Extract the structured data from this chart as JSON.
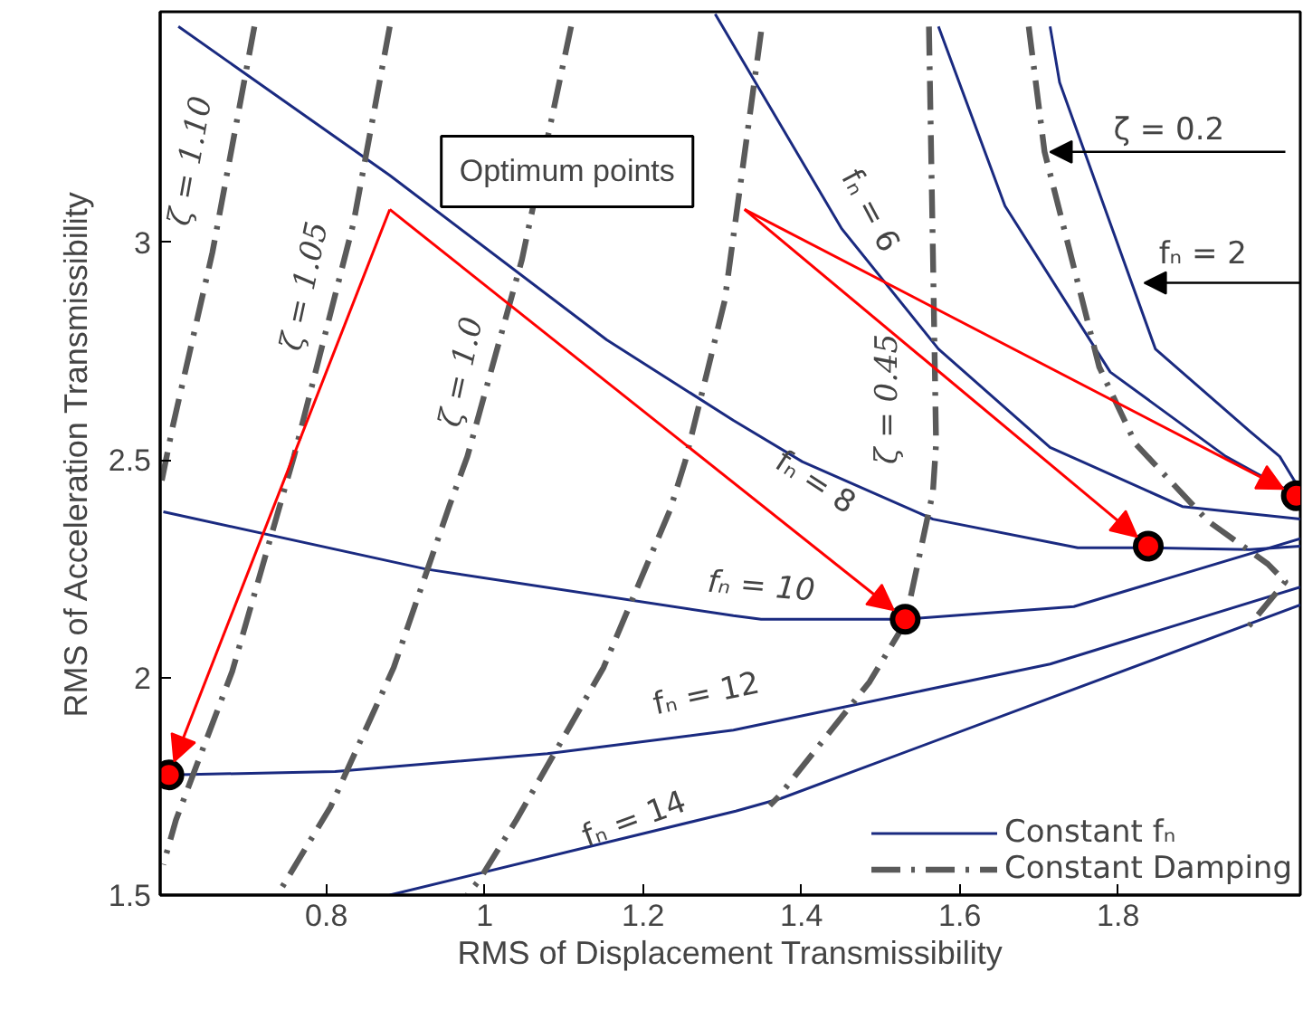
{
  "chart_data": {
    "type": "line",
    "xlabel": "RMS of Displacement Transmissibility",
    "ylabel": "RMS of Acceleration Transmissibility",
    "xlim": [
      0.59,
      2.03
    ],
    "ylim": [
      1.5,
      3.53
    ],
    "xticks": [
      0.8,
      1,
      1.2,
      1.4,
      1.6,
      1.8
    ],
    "yticks": [
      1.5,
      2,
      2.5,
      3
    ],
    "grid": false,
    "legend": "bottom right",
    "series": [
      {
        "name": "Constant fₙ",
        "color": "#1a2a80",
        "line_style": "solid",
        "x": [
          0.88,
          1.317,
          1.374,
          2.03
        ],
        "values": [
          1.5,
          1.693,
          1.722,
          2.167
        ]
      },
      {
        "color": "#1a2a80",
        "line_style": "solid",
        "x": [
          0.601,
          0.811,
          1.079,
          1.314,
          1.714,
          2.03
        ],
        "values": [
          1.776,
          1.784,
          1.825,
          1.879,
          2.031,
          2.208
        ]
      },
      {
        "color": "#1a2a80",
        "line_style": "solid",
        "x": [
          0.594,
          0.926,
          1.314,
          1.349,
          1.529,
          1.744,
          2.03
        ],
        "values": [
          2.381,
          2.249,
          2.142,
          2.134,
          2.134,
          2.163,
          2.319
        ]
      },
      {
        "color": "#1a2a80",
        "line_style": "solid",
        "x": [
          0.613,
          0.88,
          1.154,
          1.314,
          1.401,
          1.566,
          1.749,
          1.838,
          1.966,
          2.03
        ],
        "values": [
          3.496,
          3.154,
          2.776,
          2.591,
          2.496,
          2.364,
          2.298,
          2.298,
          2.294,
          2.302
        ]
      },
      {
        "color": "#1a2a80",
        "line_style": "solid",
        "x": [
          1.291,
          1.451,
          1.573,
          1.714,
          1.881,
          2.03
        ],
        "values": [
          3.525,
          3.031,
          2.755,
          2.529,
          2.393,
          2.364
        ]
      },
      {
        "color": "#1a2a80",
        "line_style": "solid",
        "x": [
          1.573,
          1.657,
          1.79,
          1.936,
          2.018,
          2.03
        ],
        "values": [
          3.496,
          3.084,
          2.702,
          2.508,
          2.426,
          2.422
        ]
      },
      {
        "color": "#1a2a80",
        "line_style": "solid",
        "x": [
          1.714,
          1.726,
          1.847,
          1.966,
          2.004,
          2.03
        ],
        "values": [
          3.496,
          3.368,
          2.755,
          2.566,
          2.508,
          2.43
        ]
      },
      {
        "name": "Constant Damping",
        "color": "#5a5a5a",
        "line_style": "dashdot",
        "x": [
          0.709,
          0.656,
          0.606,
          0.59
        ],
        "values": [
          3.496,
          2.977,
          2.578,
          2.434
        ]
      },
      {
        "color": "#5a5a5a",
        "line_style": "dashdot",
        "x": [
          0.88,
          0.834,
          0.759,
          0.681,
          0.61,
          0.594
        ],
        "values": [
          3.496,
          3.043,
          2.508,
          2.014,
          1.673,
          1.57
        ]
      },
      {
        "color": "#5a5a5a",
        "line_style": "dashdot",
        "x": [
          1.109,
          1.047,
          0.978,
          0.955,
          0.885,
          0.805,
          0.738
        ],
        "values": [
          3.496,
          2.961,
          2.508,
          2.393,
          2.023,
          1.702,
          1.5
        ]
      },
      {
        "color": "#5a5a5a",
        "line_style": "dashdot",
        "x": [
          1.349,
          1.303,
          1.253,
          1.234,
          1.15,
          1.04,
          0.994,
          0.978
        ],
        "values": [
          3.484,
          2.866,
          2.496,
          2.385,
          2.023,
          1.673,
          1.537,
          1.5
        ]
      },
      {
        "color": "#5a5a5a",
        "line_style": "dashdot",
        "x": [
          1.561,
          1.566,
          1.57,
          1.566,
          1.531,
          1.486,
          1.371,
          1.36
        ],
        "values": [
          3.496,
          2.977,
          2.537,
          2.426,
          2.126,
          1.99,
          1.726,
          1.706
        ]
      },
      {
        "color": "#5a5a5a",
        "line_style": "dashdot",
        "x": [
          1.687,
          1.707,
          1.776,
          1.822,
          1.913,
          1.989,
          2.011,
          1.959
        ],
        "values": [
          3.496,
          3.208,
          2.714,
          2.537,
          2.36,
          2.261,
          2.22,
          2.105
        ]
      },
      {
        "type": "scatter",
        "color": "#ff0000",
        "marker": "circle",
        "x": [
          0.601,
          1.531,
          1.838,
          2.025
        ],
        "values": [
          1.776,
          2.134,
          2.302,
          2.418
        ]
      }
    ],
    "annotations": [
      "Optimum points",
      "ζ = 1.10",
      "ζ = 1.05",
      "ζ = 1.0",
      "ζ = 0.45",
      "ζ = 0.2",
      "fₙ = 2",
      "fₙ = 6",
      "fₙ = 8",
      "fₙ = 10",
      "fₙ = 12",
      "fₙ = 14"
    ]
  }
}
